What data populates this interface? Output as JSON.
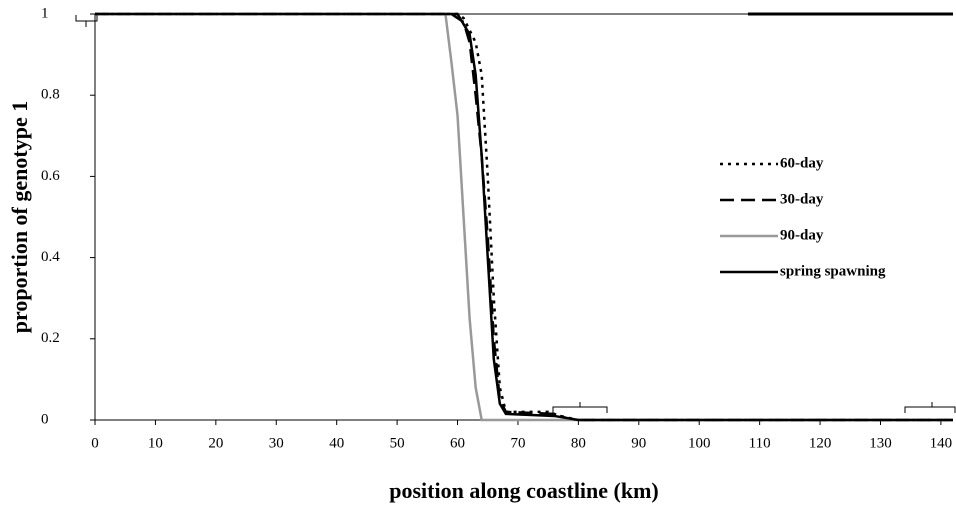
{
  "chart_data": {
    "type": "line",
    "xlabel": "position along coastline (km)",
    "ylabel": "proportion of genotype 1",
    "xlim": [
      0,
      142
    ],
    "ylim": [
      0,
      1
    ],
    "xticks": [
      0,
      10,
      20,
      30,
      40,
      50,
      60,
      70,
      80,
      90,
      100,
      110,
      120,
      130,
      140
    ],
    "yticks": [
      0,
      0.2,
      0.4,
      0.6,
      0.8,
      1
    ],
    "series": [
      {
        "name": "60-day",
        "color": "#000000",
        "dash": "3,5",
        "x": [
          0,
          60,
          61,
          62,
          63,
          64,
          65,
          66,
          67,
          68,
          75,
          77,
          80,
          142
        ],
        "values": [
          1,
          1,
          0.99,
          0.96,
          0.93,
          0.85,
          0.6,
          0.3,
          0.08,
          0.02,
          0.02,
          0.01,
          0,
          0
        ]
      },
      {
        "name": "30-day",
        "color": "#000000",
        "dash": "14,7",
        "x": [
          0,
          59,
          61,
          62,
          63,
          64,
          65,
          66,
          67,
          68,
          76,
          78,
          80,
          142
        ],
        "values": [
          1,
          1,
          0.98,
          0.93,
          0.8,
          0.65,
          0.45,
          0.2,
          0.05,
          0.02,
          0.015,
          0.005,
          0,
          0
        ]
      },
      {
        "name": "90-day",
        "color": "#999999",
        "dash": "none",
        "x": [
          0,
          58,
          59,
          60,
          61,
          62,
          63,
          64,
          142
        ],
        "values": [
          1,
          1,
          0.88,
          0.75,
          0.5,
          0.25,
          0.08,
          0,
          0
        ]
      },
      {
        "name": "spring spawning",
        "color": "#000000",
        "dash": "none",
        "x": [
          0,
          60,
          62,
          63,
          64,
          65,
          66,
          67,
          68,
          76,
          80,
          142
        ],
        "values": [
          1,
          1,
          0.95,
          0.85,
          0.65,
          0.4,
          0.15,
          0.04,
          0.015,
          0.01,
          0,
          0
        ]
      }
    ]
  }
}
